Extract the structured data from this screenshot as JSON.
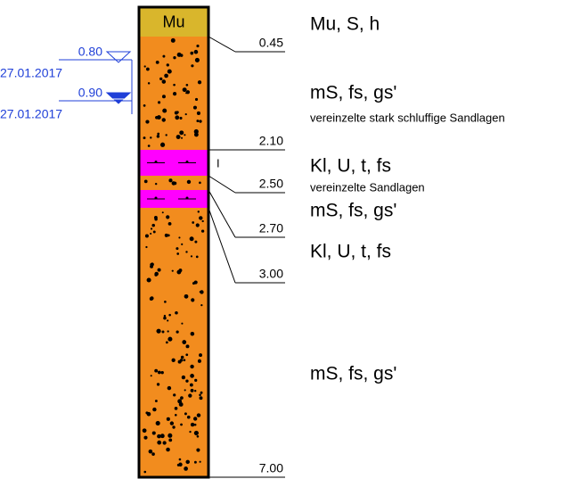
{
  "layers": [
    {
      "label": "Mu",
      "depth": "0.45",
      "description": "Mu, S, h"
    },
    {
      "depth": "2.10",
      "description": "mS, fs, gs'",
      "note": "vereinzelte stark schluffige Sandlagen"
    },
    {
      "depth": "2.50",
      "description": "Kl, U, t, fs",
      "note": "vereinzelte Sandlagen",
      "marker": "I"
    },
    {
      "depth": "2.70",
      "description": "mS, fs, gs'"
    },
    {
      "depth": "3.00",
      "description": "Kl, U, t, fs"
    },
    {
      "depth": "7.00",
      "description": "mS, fs, gs'"
    }
  ],
  "water_levels": [
    {
      "depth": "0.80",
      "date": "27.01.2017"
    },
    {
      "depth": "0.90",
      "date": "27.01.2017"
    }
  ]
}
